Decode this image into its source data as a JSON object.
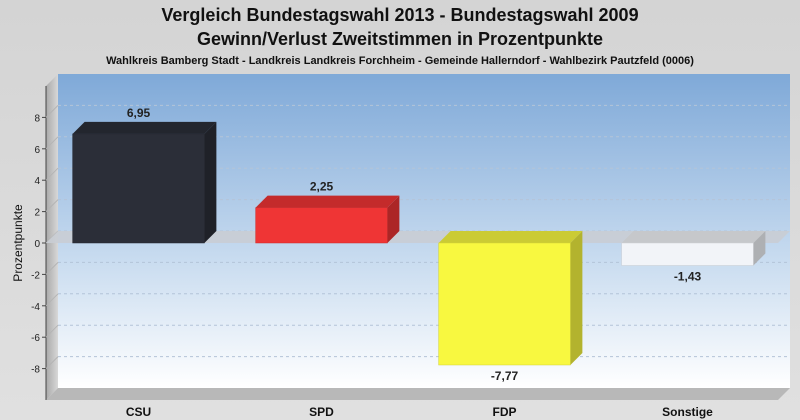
{
  "header": {
    "title_line1": "Vergleich Bundestagswahl 2013 - Bundestagswahl 2009",
    "title_line2": "Gewinn/Verlust Zweitstimmen in Prozentpunkte",
    "subtitle": "Wahlkreis Bamberg Stadt - Landkreis Landkreis Forchheim - Gemeinde Hallerndorf - Wahlbezirk Pautzfeld (0006)"
  },
  "chart_data": {
    "type": "bar",
    "title": "Vergleich Bundestagswahl 2013 - Bundestagswahl 2009",
    "subtitle": "Gewinn/Verlust Zweitstimmen in Prozentpunkte",
    "xlabel": "",
    "ylabel": "Prozentpunkte",
    "ylim": [
      -10,
      10
    ],
    "yticks": [
      8,
      6,
      4,
      2,
      0,
      -2,
      -4,
      -6,
      -8
    ],
    "grid": true,
    "categories": [
      "CSU",
      "SPD",
      "FDP",
      "Sonstige"
    ],
    "values": [
      6.95,
      2.25,
      -7.77,
      -1.43
    ],
    "value_labels": [
      "6,95",
      "2,25",
      "-7,77",
      "-1,43"
    ],
    "colors": [
      "#2b2e38",
      "#ef3535",
      "#f8f840",
      "#f2f4f8"
    ]
  }
}
